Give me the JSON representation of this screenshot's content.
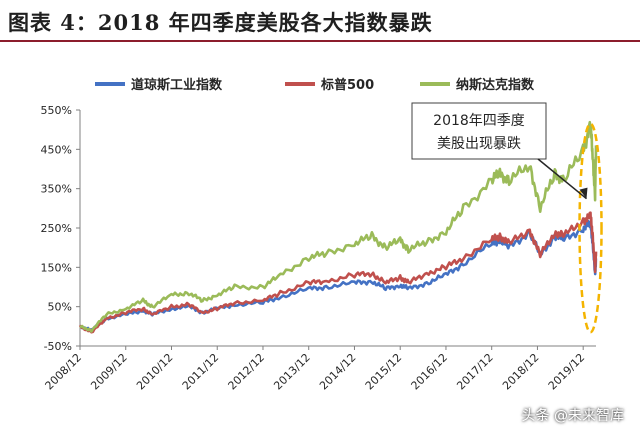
{
  "figure": {
    "title": "图表 4：2018 年四季度美股各大指数暴跌"
  },
  "watermark": "头条 @未来智库",
  "chart_data": {
    "type": "line",
    "grid": false,
    "legend_position": "top",
    "y_tick_labels": [
      "-50%",
      "50%",
      "150%",
      "250%",
      "350%",
      "450%",
      "550%"
    ],
    "y_ticks": [
      -50,
      50,
      150,
      250,
      350,
      450,
      550
    ],
    "ylim": [
      -50,
      550
    ],
    "x_tick_labels": [
      "2008/12",
      "2009/12",
      "2010/12",
      "2011/12",
      "2012/12",
      "2013/12",
      "2014/12",
      "2015/12",
      "2016/12",
      "2017/12",
      "2018/12",
      "2019/12"
    ],
    "x_ticks": [
      2008.92,
      2009.92,
      2010.92,
      2011.92,
      2012.92,
      2013.92,
      2014.92,
      2015.92,
      2016.92,
      2017.92,
      2018.92,
      2019.92
    ],
    "xlim": [
      2008.92,
      2020.2
    ],
    "annotation": {
      "text_line1": "2018年四季度",
      "text_line2": "美股出现暴跌",
      "x": 2018.88,
      "y": 350
    },
    "series": [
      {
        "name": "道琼斯工业指数",
        "color": "#4472c4",
        "x": [
          2008.92,
          2009.17,
          2009.5,
          2009.92,
          2010.3,
          2010.5,
          2010.92,
          2011.3,
          2011.6,
          2011.92,
          2012.3,
          2012.92,
          2013.3,
          2013.92,
          2014.3,
          2014.92,
          2015.3,
          2015.6,
          2015.92,
          2016.1,
          2016.5,
          2016.92,
          2017.3,
          2017.92,
          2018.1,
          2018.3,
          2018.75,
          2018.98,
          2019.3,
          2019.5,
          2019.92,
          2020.08,
          2020.13,
          2020.18,
          2020.2
        ],
        "y": [
          0,
          -10,
          20,
          30,
          40,
          30,
          45,
          50,
          35,
          45,
          55,
          60,
          75,
          95,
          100,
          110,
          115,
          95,
          105,
          95,
          110,
          130,
          160,
          210,
          220,
          200,
          240,
          180,
          230,
          220,
          250,
          260,
          210,
          130,
          170
        ]
      },
      {
        "name": "标普500",
        "color": "#c0504d",
        "x": [
          2008.92,
          2009.17,
          2009.5,
          2009.92,
          2010.3,
          2010.5,
          2010.92,
          2011.3,
          2011.6,
          2011.92,
          2012.3,
          2012.92,
          2013.3,
          2013.92,
          2014.3,
          2014.92,
          2015.3,
          2015.6,
          2015.92,
          2016.1,
          2016.5,
          2016.92,
          2017.3,
          2017.92,
          2018.1,
          2018.3,
          2018.75,
          2018.98,
          2019.3,
          2019.5,
          2019.92,
          2020.08,
          2020.13,
          2020.18,
          2020.2
        ],
        "y": [
          0,
          -15,
          20,
          35,
          45,
          30,
          50,
          55,
          35,
          45,
          60,
          65,
          85,
          110,
          115,
          130,
          135,
          110,
          125,
          110,
          135,
          150,
          175,
          220,
          230,
          210,
          245,
          180,
          240,
          230,
          270,
          280,
          230,
          140,
          190
        ]
      },
      {
        "name": "纳斯达克指数",
        "color": "#9bbb59",
        "x": [
          2008.92,
          2009.17,
          2009.5,
          2009.92,
          2010.3,
          2010.5,
          2010.92,
          2011.3,
          2011.6,
          2011.92,
          2012.3,
          2012.92,
          2013.3,
          2013.92,
          2014.3,
          2014.92,
          2015.3,
          2015.6,
          2015.92,
          2016.1,
          2016.5,
          2016.92,
          2017.3,
          2017.92,
          2018.1,
          2018.3,
          2018.75,
          2018.98,
          2019.3,
          2019.5,
          2019.92,
          2020.08,
          2020.13,
          2020.18,
          2020.2
        ],
        "y": [
          0,
          -10,
          30,
          45,
          65,
          50,
          80,
          85,
          65,
          80,
          100,
          100,
          130,
          175,
          185,
          210,
          230,
          200,
          220,
          195,
          215,
          240,
          300,
          370,
          390,
          370,
          410,
          300,
          390,
          370,
          450,
          510,
          430,
          330,
          460
        ]
      }
    ]
  }
}
